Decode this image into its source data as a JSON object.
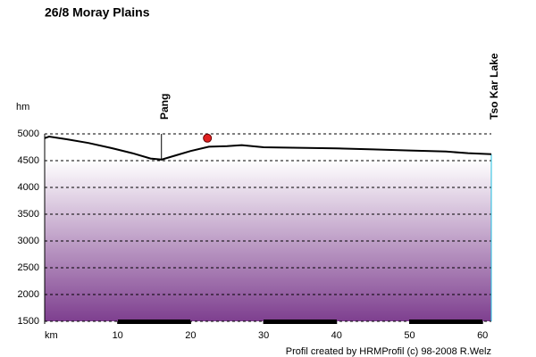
{
  "chart_data": {
    "type": "area",
    "title": "26/8 Moray Plains",
    "y_label": "hm",
    "footer": "Profil created by HRMProfil (c) 98-2008 R.Welz",
    "x": [
      0,
      0.6,
      3,
      6,
      9,
      12,
      14.5,
      16,
      18,
      20,
      22.5,
      25,
      27,
      30,
      35,
      40,
      45,
      50,
      55,
      58,
      61.2
    ],
    "values": [
      4920,
      4950,
      4900,
      4830,
      4740,
      4640,
      4540,
      4520,
      4600,
      4680,
      4760,
      4770,
      4790,
      4750,
      4740,
      4730,
      4710,
      4690,
      4670,
      4640,
      4620
    ],
    "color": "#000000",
    "fill_color": "#7e3f8f",
    "xlim": [
      0,
      61.2
    ],
    "ylim": [
      1500,
      5000
    ],
    "xticks": [
      {
        "value": 0,
        "label": "km"
      },
      10,
      20,
      30,
      40,
      50,
      60
    ],
    "yticks": [
      1500,
      2000,
      2500,
      3000,
      3500,
      4000,
      4500,
      5000
    ],
    "grid": true,
    "annotations": [
      {
        "text": "Pang",
        "x": 16,
        "y": 4520
      },
      {
        "text": "Tso Kar Lake",
        "x": 61.2,
        "y": 4620
      }
    ],
    "marker": {
      "x": 22.3,
      "y": 4920,
      "color": "#e02020"
    }
  }
}
